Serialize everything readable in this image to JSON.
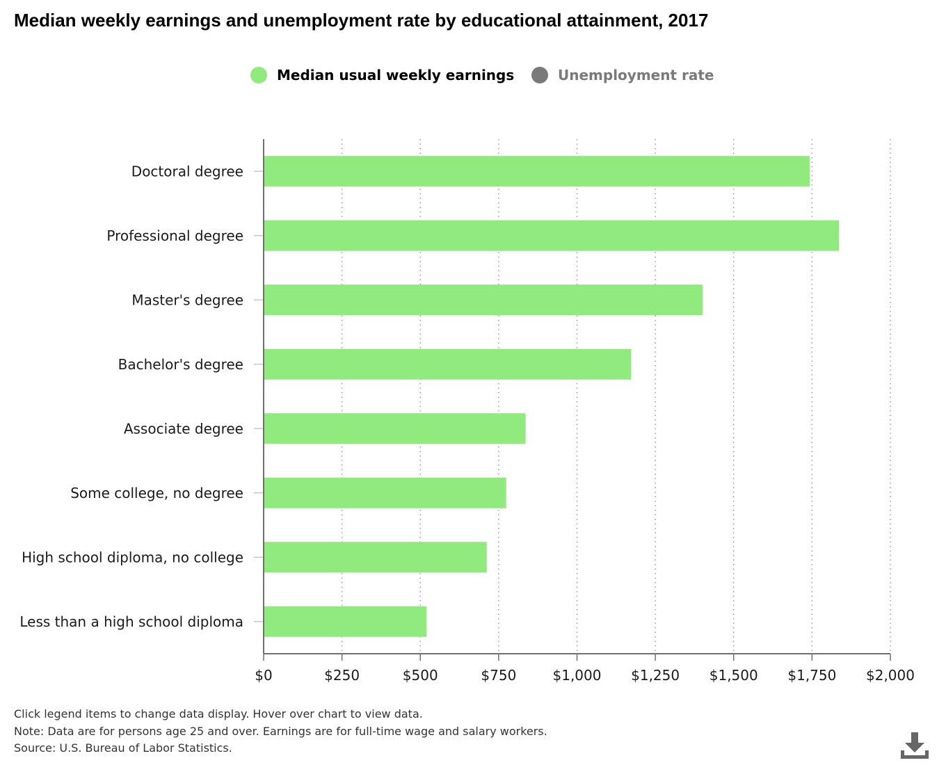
{
  "chart_data": {
    "type": "bar",
    "orientation": "horizontal",
    "title": "Median weekly earnings and unemployment rate by educational attainment, 2017",
    "categories": [
      "Doctoral degree",
      "Professional degree",
      "Master's degree",
      "Bachelor's degree",
      "Associate degree",
      "Some college, no degree",
      "High school diploma, no college",
      "Less than a high school diploma"
    ],
    "series": [
      {
        "name": "Median usual weekly earnings",
        "values": [
          1743,
          1836,
          1401,
          1173,
          836,
          774,
          712,
          520
        ],
        "color": "#90ea7d",
        "visible": true
      },
      {
        "name": "Unemployment rate",
        "color": "#7a7a7a",
        "visible": false
      }
    ],
    "xlim": [
      0,
      2000
    ],
    "xticks": [
      0,
      250,
      500,
      750,
      1000,
      1250,
      1500,
      1750,
      2000
    ],
    "xtick_labels": [
      "$0",
      "$250",
      "$500",
      "$750",
      "$1,000",
      "$1,250",
      "$1,500",
      "$1,750",
      "$2,000"
    ],
    "grid": "vertical-dotted",
    "legend": "top-center"
  },
  "footer": {
    "line1": "Click legend items to change data display. Hover over chart to view data.",
    "line2": "Note: Data are for persons age 25 and over. Earnings are for full-time wage and salary workers.",
    "line3": "Source: U.S. Bureau of Labor Statistics."
  },
  "colors": {
    "axis": "#707070",
    "grid": "#9a9a9a",
    "legend_inactive": "#7a7a7a"
  },
  "icons": {
    "download": "download-icon"
  }
}
